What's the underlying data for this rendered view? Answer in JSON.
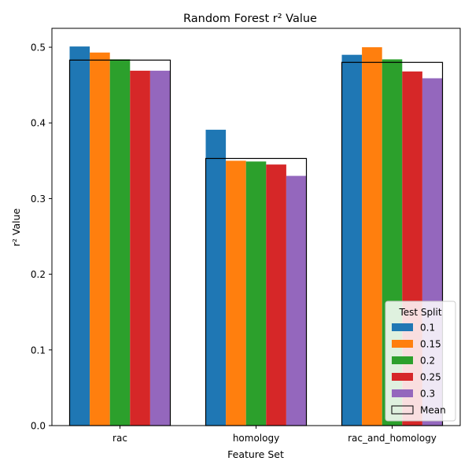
{
  "chart_data": {
    "type": "bar",
    "title": "Random Forest r² Value",
    "xlabel": "Feature Set",
    "ylabel": "r² Value",
    "categories": [
      "rac",
      "homology",
      "rac_and_homology"
    ],
    "ylim": [
      0,
      0.525
    ],
    "yticks": [
      "0.0",
      "0.1",
      "0.2",
      "0.3",
      "0.4",
      "0.5"
    ],
    "grid": false,
    "legend": {
      "title": "Test Split",
      "placement": "lower right"
    },
    "series": [
      {
        "name": "0.1",
        "color": "#1f77b4",
        "values": [
          0.501,
          0.391,
          0.49
        ]
      },
      {
        "name": "0.15",
        "color": "#ff7f0e",
        "values": [
          0.493,
          0.35,
          0.5
        ]
      },
      {
        "name": "0.2",
        "color": "#2ca02c",
        "values": [
          0.484,
          0.349,
          0.484
        ]
      },
      {
        "name": "0.25",
        "color": "#d62728",
        "values": [
          0.469,
          0.345,
          0.468
        ]
      },
      {
        "name": "0.3",
        "color": "#9467bd",
        "values": [
          0.469,
          0.33,
          0.459
        ]
      }
    ],
    "mean": {
      "name": "Mean",
      "values": [
        0.483,
        0.353,
        0.48
      ]
    }
  }
}
